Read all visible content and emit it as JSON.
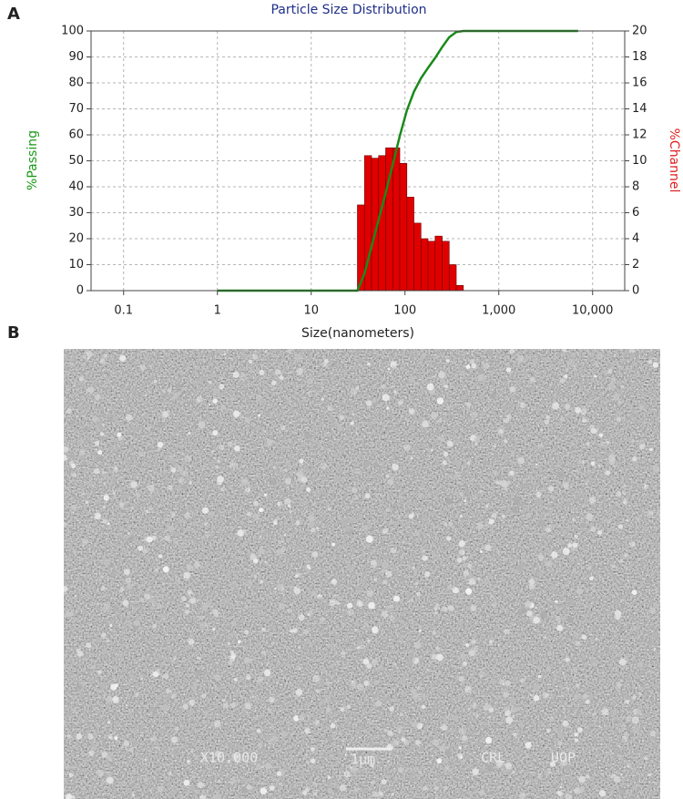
{
  "panel_labels": [
    "A",
    "B"
  ],
  "chart_data": {
    "type": "combo",
    "title": "Particle Size Distribution",
    "xlabel": "Size(nanometers)",
    "ylabel": "%Passing",
    "y2label": "%Channel",
    "xscale": "log",
    "xlim": [
      0.045,
      22000
    ],
    "xticks": [
      0.1,
      1,
      10,
      100,
      {
        "value": 1000,
        "label": "1,000"
      },
      {
        "value": 10000,
        "label": "10,000"
      }
    ],
    "ylim": [
      0,
      100
    ],
    "yticks": [
      0,
      10,
      20,
      30,
      40,
      50,
      60,
      70,
      80,
      90,
      100
    ],
    "y2lim": [
      0,
      20
    ],
    "y2ticks": [
      0,
      2,
      4,
      6,
      8,
      10,
      12,
      14,
      16,
      18,
      20
    ],
    "grid": true,
    "series": [
      {
        "type": "histogram",
        "axis": "y2",
        "color": "#e00000",
        "bins": [
          31.1,
          37,
          44,
          52.3,
          62.2,
          74,
          88,
          104.7,
          124.5,
          148,
          176,
          209.3,
          248.9,
          296,
          352,
          418.6
        ],
        "values": [
          6.6,
          10.4,
          10.2,
          10.4,
          11.0,
          11.0,
          9.8,
          7.2,
          5.2,
          4.0,
          3.8,
          4.2,
          3.8,
          2.0,
          0.4
        ]
      },
      {
        "type": "line",
        "color": "#1a8a1a",
        "x": [
          1,
          31.1,
          37,
          44,
          52.3,
          62.2,
          74,
          88,
          104.7,
          124.5,
          148,
          176,
          209.3,
          248.9,
          296,
          352,
          418.6,
          7000
        ],
        "values": [
          0,
          0,
          6.6,
          17,
          27.2,
          37.6,
          48.6,
          59.6,
          69.4,
          76.6,
          81.8,
          85.8,
          89.6,
          93.8,
          97.6,
          99.6,
          100,
          100
        ]
      }
    ]
  },
  "micrograph": {
    "magnification": "X10,000",
    "scale_bar": "1μm",
    "lab": "CRL",
    "institution": "UOP"
  }
}
